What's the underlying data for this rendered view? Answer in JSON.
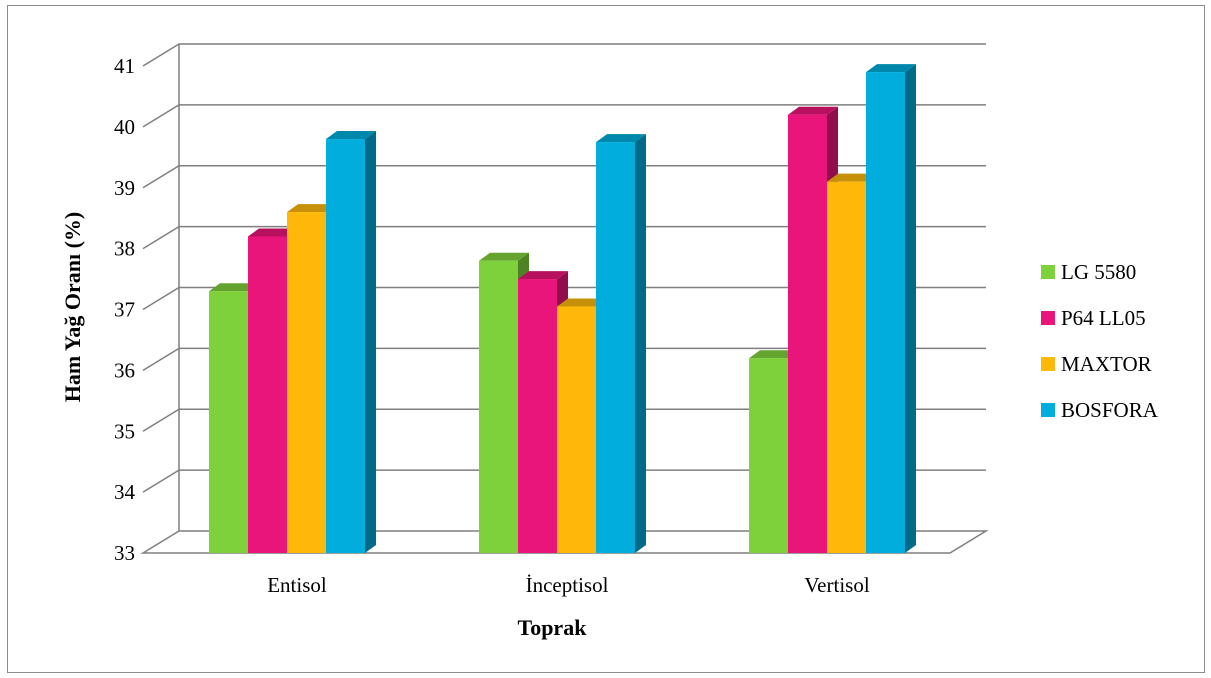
{
  "chart_data": {
    "type": "bar",
    "title": "",
    "xlabel": "Toprak",
    "ylabel": "Ham Yağ Oranı (%)",
    "categories": [
      "Entisol",
      "İnceptisol",
      "Vertisol"
    ],
    "ylim": [
      33,
      41
    ],
    "yticks": [
      "33",
      "34",
      "35",
      "36",
      "37",
      "38",
      "39",
      "40",
      "41"
    ],
    "grid": true,
    "legend_position": "right",
    "series": [
      {
        "name": "LG 5580",
        "color": "#7FD13B",
        "values": [
          37.3,
          37.8,
          36.2
        ]
      },
      {
        "name": "P64 LL05",
        "color": "#EA157A",
        "values": [
          38.2,
          37.5,
          40.2
        ]
      },
      {
        "name": "MAXTOR",
        "color": "#FEB80A",
        "values": [
          38.6,
          37.05,
          39.1
        ]
      },
      {
        "name": "BOSFORA",
        "color": "#00ADDC",
        "values": [
          39.8,
          39.75,
          40.9
        ]
      }
    ]
  }
}
